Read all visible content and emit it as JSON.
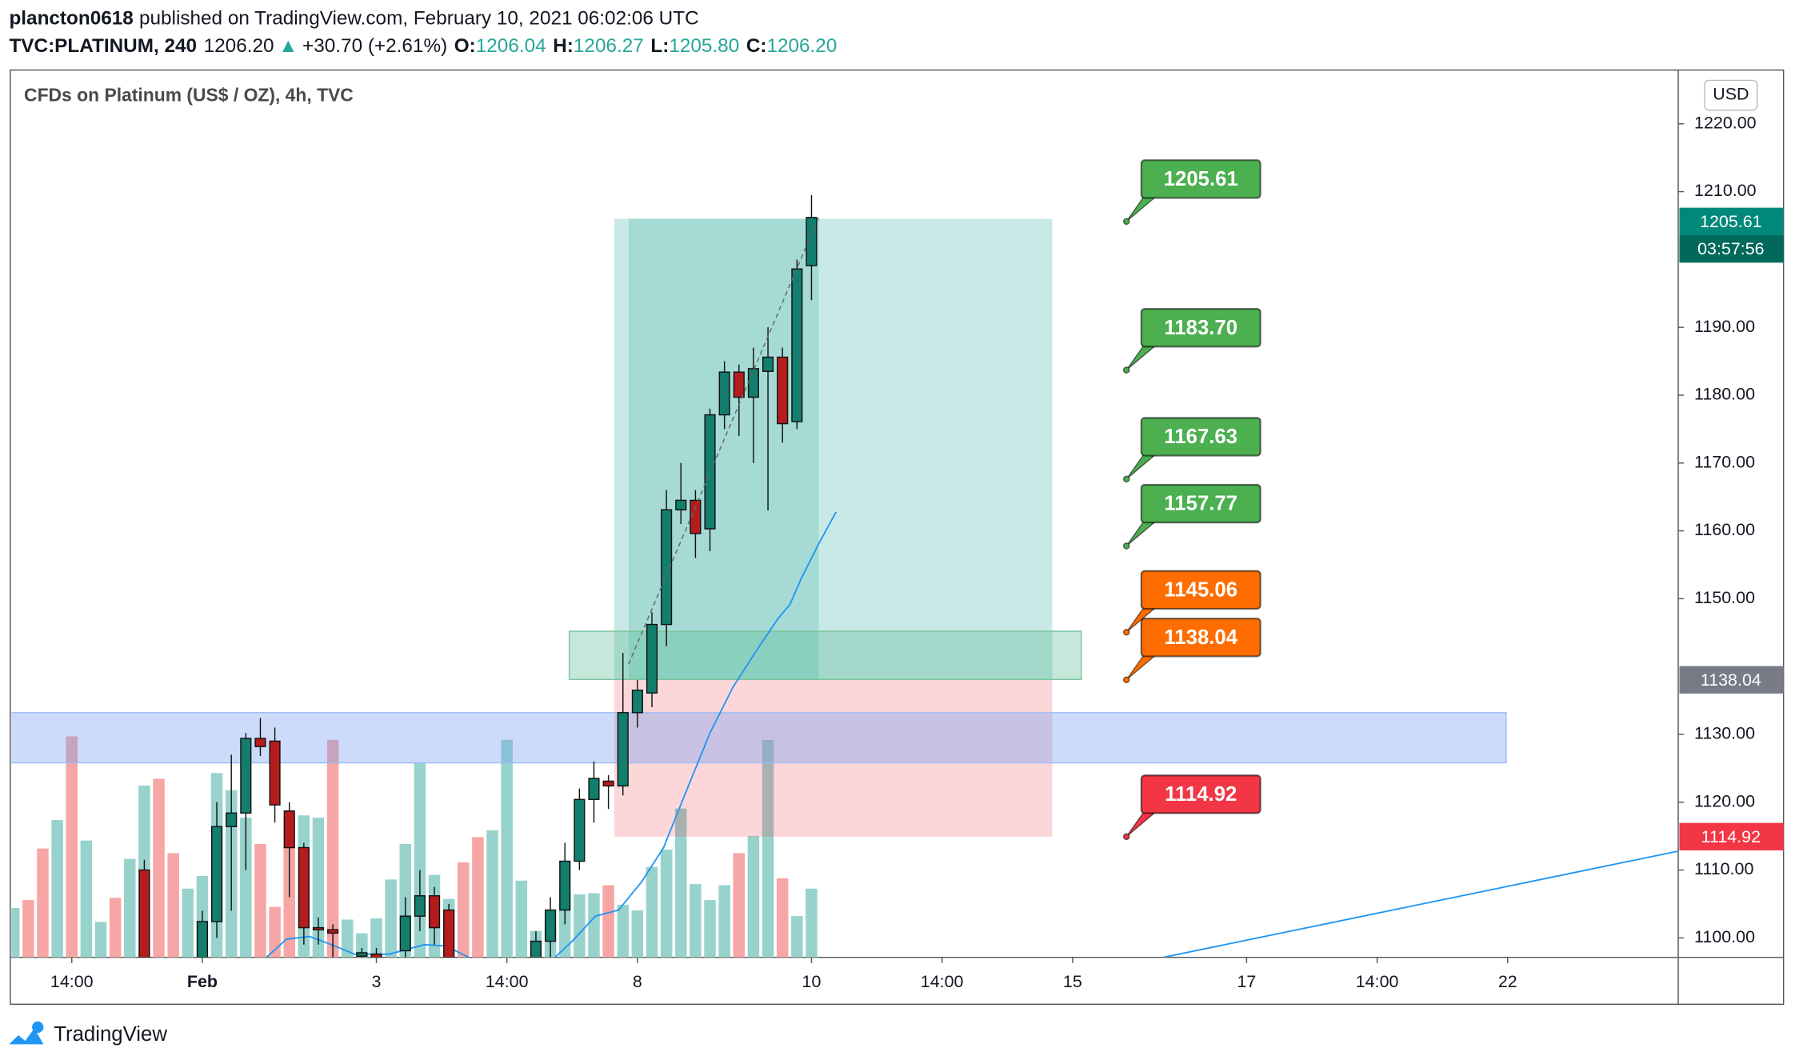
{
  "header": {
    "user": "plancton0618",
    "published": "published on TradingView.com, February 10, 2021 06:02:06 UTC",
    "symbol": "TVC:PLATINUM, 240",
    "last": "1206.20",
    "arrow": "▲",
    "change": "+30.70 (+2.61%)",
    "ohlc": [
      {
        "key": "O:",
        "value": "1206.04"
      },
      {
        "key": "H:",
        "value": "1206.27"
      },
      {
        "key": "L:",
        "value": "1205.80"
      },
      {
        "key": "C:",
        "value": "1206.20"
      }
    ],
    "logo": "TradingView"
  },
  "chart_data": {
    "type": "candlestick",
    "title": "CFDs on Platinum (US$ / OZ), 4h, TVC",
    "currency": "USD",
    "grid": false,
    "xlim": [
      -9.16,
      105.76
    ],
    "ylim": [
      1097.13,
      1227.76
    ],
    "yticks": [
      {
        "value": 1100,
        "label": "1100.00"
      },
      {
        "value": 1110,
        "label": "1110.00"
      },
      {
        "value": 1120,
        "label": "1120.00"
      },
      {
        "value": 1130,
        "label": "1130.00"
      },
      {
        "value": 1150,
        "label": "1150.00"
      },
      {
        "value": 1160,
        "label": "1160.00"
      },
      {
        "value": 1170,
        "label": "1170.00"
      },
      {
        "value": 1180,
        "label": "1180.00"
      },
      {
        "value": 1190,
        "label": "1190.00"
      },
      {
        "value": 1210,
        "label": "1210.00"
      },
      {
        "value": 1220,
        "label": "1220.00"
      }
    ],
    "xticks": [
      {
        "value": -5,
        "label": "14:00"
      },
      {
        "value": 4,
        "label": "Feb"
      },
      {
        "value": 16,
        "label": "3"
      },
      {
        "value": 25,
        "label": "14:00"
      },
      {
        "value": 34,
        "label": "8"
      },
      {
        "value": 46,
        "label": "10"
      },
      {
        "value": 55,
        "label": "14:00"
      },
      {
        "value": 64,
        "label": "15"
      },
      {
        "value": 76,
        "label": "17"
      },
      {
        "value": 85,
        "label": "14:00"
      },
      {
        "value": 94,
        "label": "22"
      }
    ],
    "up_color": "#137e6d",
    "down_color": "#b71c1c",
    "candles": {
      "index": [
        0,
        4,
        5,
        6,
        7,
        8,
        9,
        10,
        11,
        12,
        13,
        15,
        16,
        18,
        19,
        20,
        21,
        27,
        28,
        29,
        30,
        31,
        32,
        33,
        34,
        35,
        36,
        37,
        38,
        39,
        40,
        41,
        42,
        43,
        44,
        45,
        46
      ],
      "open": [
        1110.0,
        1097.1,
        1102.4,
        1116.4,
        1118.4,
        1129.4,
        1129.0,
        1118.7,
        1113.3,
        1101.5,
        1101.2,
        1097.3,
        1097.6,
        1098.1,
        1103.2,
        1106.2,
        1104.1,
        1097.1,
        1099.5,
        1104.1,
        1111.3,
        1120.4,
        1123.1,
        1122.4,
        1133.2,
        1136.1,
        1146.2,
        1163.1,
        1164.5,
        1160.3,
        1177.1,
        1183.4,
        1179.7,
        1183.5,
        1185.6,
        1176.1,
        1199.1
      ],
      "high": [
        1111.5,
        1104,
        1120,
        1127,
        1130.2,
        1132.4,
        1131,
        1120,
        1114,
        1103,
        1102,
        1098.5,
        1098.5,
        1106,
        1110,
        1107.5,
        1105,
        1101,
        1106,
        1114,
        1122,
        1126,
        1124,
        1142,
        1138,
        1148,
        1166,
        1170,
        1166,
        1178,
        1185,
        1184.5,
        1187,
        1190,
        1187,
        1200,
        1209.5
      ],
      "low": [
        1096,
        1096,
        1100,
        1104,
        1110,
        1126.8,
        1117,
        1106,
        1099,
        1099,
        1097,
        1096.5,
        1096,
        1096,
        1101,
        1099,
        1096,
        1096,
        1097,
        1102,
        1110,
        1117,
        1119,
        1121,
        1131,
        1134,
        1143,
        1161,
        1156,
        1157,
        1175,
        1174,
        1170,
        1163,
        1173,
        1175,
        1194
      ],
      "close": [
        1097.1,
        1102.4,
        1116.4,
        1118.4,
        1129.4,
        1128.2,
        1119.6,
        1113.3,
        1101.5,
        1101.2,
        1100.7,
        1097.8,
        1097.1,
        1103.2,
        1106.2,
        1101.5,
        1097.1,
        1099.5,
        1104.1,
        1111.3,
        1120.4,
        1123.5,
        1122.4,
        1133.2,
        1136.5,
        1146.2,
        1163.1,
        1164.5,
        1159.6,
        1177.1,
        1183.4,
        1179.7,
        1183.9,
        1185.6,
        1175.8,
        1198.6,
        1206.2
      ]
    },
    "volume": {
      "vlim": [
        0,
        774
      ],
      "index": [
        -9,
        -8,
        -7,
        -6,
        -5,
        -4,
        -3,
        -2,
        -1,
        0,
        1,
        2,
        3,
        4,
        5,
        6,
        7,
        8,
        9,
        10,
        11,
        12,
        13,
        14,
        15,
        16,
        17,
        18,
        19,
        20,
        21,
        22,
        23,
        24,
        25,
        26,
        27,
        28,
        29,
        30,
        31,
        32,
        33,
        34,
        35,
        36,
        37,
        38,
        39,
        40,
        41,
        42,
        43,
        44,
        45,
        46
      ],
      "values": [
        43,
        50,
        95,
        120,
        193,
        102,
        31,
        52,
        86,
        150,
        156,
        91,
        60,
        71,
        161,
        146,
        122,
        99,
        44,
        98,
        124,
        122,
        190,
        33,
        21,
        34,
        68,
        99,
        170,
        72,
        51,
        83,
        105,
        111,
        190,
        67,
        23,
        31,
        58,
        55,
        56,
        63,
        46,
        41,
        79,
        94,
        130,
        64,
        50,
        63,
        91,
        106,
        190,
        69,
        36,
        60
      ],
      "colors": [
        "#97d3cc",
        "#f6a6a4",
        "#f6a6a4",
        "#97d3cc",
        "#f6a6a4",
        "#97d3cc",
        "#97d3cc",
        "#f6a6a4",
        "#97d3cc",
        "#97d3cc",
        "#f6a6a4",
        "#f6a6a4",
        "#97d3cc",
        "#97d3cc",
        "#97d3cc",
        "#97d3cc",
        "#97d3cc",
        "#f6a6a4",
        "#f6a6a4",
        "#f6a6a4",
        "#97d3cc",
        "#97d3cc",
        "#f6a6a4",
        "#97d3cc",
        "#97d3cc",
        "#97d3cc",
        "#97d3cc",
        "#97d3cc",
        "#97d3cc",
        "#97d3cc",
        "#97d3cc",
        "#f6a6a4",
        "#f6a6a4",
        "#97d3cc",
        "#97d3cc",
        "#97d3cc",
        "#97d3cc",
        "#97d3cc",
        "#97d3cc",
        "#97d3cc",
        "#97d3cc",
        "#f6a6a4",
        "#97d3cc",
        "#97d3cc",
        "#97d3cc",
        "#97d3cc",
        "#97d3cc",
        "#97d3cc",
        "#97d3cc",
        "#97d3cc",
        "#f6a6a4",
        "#97d3cc",
        "#97d3cc",
        "#f6a6a4",
        "#97d3cc",
        "#97d3cc"
      ]
    },
    "lines": [
      {
        "color": "#2196f3",
        "index": [
          8.4,
          9.8,
          11.4,
          12.9,
          14.5,
          16.9,
          19.3,
          20.8,
          22.4,
          25,
          28.3,
          29.5,
          31.1,
          32.7,
          34.3,
          35.8,
          37.4,
          39.0,
          40.6,
          42.1,
          43.7,
          44.5,
          45.3,
          46.5,
          47.7
        ],
        "values": [
          1097.1,
          1099.8,
          1100.2,
          1099.0,
          1097.6,
          1097.6,
          1099.0,
          1098.8,
          1097.1,
          1093,
          1097.1,
          1099.5,
          1103.2,
          1104.1,
          1108.3,
          1113.3,
          1121.8,
          1130.2,
          1137.0,
          1142.0,
          1147.1,
          1149.1,
          1153.0,
          1158.1,
          1162.8
        ]
      },
      {
        "color": "#2196f3",
        "index": [
          70.2,
          105.8
        ],
        "values": [
          1097.1,
          1112.8
        ]
      }
    ],
    "zones": [
      {
        "from": 1125.8,
        "to": 1133.2,
        "start": -9.3,
        "end": 93.9,
        "color": "rgba(120,160,240,0.38)",
        "border": "#9fbdf2"
      },
      {
        "from": 1138.1,
        "to": 1145.2,
        "start": 29.3,
        "end": 64.6,
        "color": "rgba(90,190,150,0.35)",
        "border": "#7ac29e"
      }
    ],
    "position": {
      "start": 32.4,
      "filled_end": 46.5,
      "end": 62.6,
      "target": 1206.0,
      "entry": 1138.04,
      "stop": 1114.92,
      "target_color": "rgba(38,166,154,0.25)",
      "filled_color": "rgba(38,166,154,0.22)",
      "stop_color": "rgba(242,54,69,0.2)"
    },
    "levels": {
      "values": [
        1205.61,
        1183.7,
        1167.63,
        1157.77,
        1145.06,
        1138.04,
        1114.92
      ],
      "value_labels": [
        "1205.61",
        "1183.70",
        "1167.63",
        "1157.77",
        "1145.06",
        "1138.04",
        "1114.92"
      ],
      "colors": [
        "#4caf50",
        "#4caf50",
        "#4caf50",
        "#4caf50",
        "#ff6d00",
        "#ff6d00",
        "#f23645"
      ]
    },
    "badges": {
      "values": [
        1205.61,
        1138.04,
        1114.92
      ],
      "value_labels": [
        "1205.61",
        "1138.04",
        "1114.92"
      ],
      "colors": [
        "#00897b",
        "#787b86",
        "#f23645"
      ],
      "countdown": "03:57:56",
      "countdown_color": "#00695c"
    }
  }
}
